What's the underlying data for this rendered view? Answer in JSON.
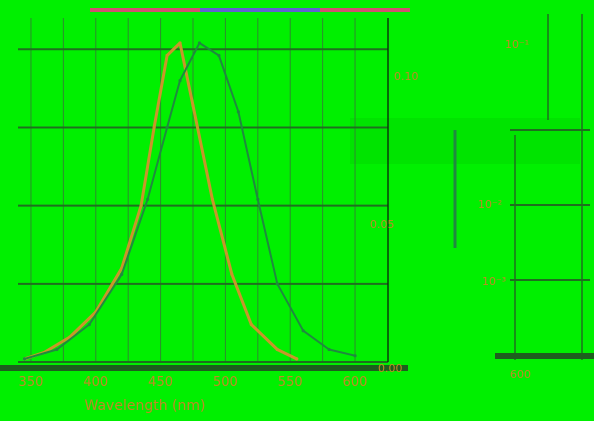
{
  "chart_data": {
    "type": "line",
    "xlabel": "Wavelength (nm)",
    "ylabel": "",
    "xlim": [
      340,
      610
    ],
    "ylim": [
      0,
      0.11
    ],
    "x_ticks": [
      "350",
      "400",
      "450",
      "500",
      "550",
      "600"
    ],
    "right_labels": [
      "0.00",
      "0.05",
      "0.10"
    ],
    "inset_labels": [
      "10⁻¹",
      "10⁻²",
      "10⁻³",
      "600"
    ],
    "grid": true,
    "series": [
      {
        "color": "#c8962a",
        "x": [
          345,
          360,
          380,
          400,
          420,
          435,
          445,
          455,
          465,
          475,
          490,
          505,
          520,
          540,
          555
        ],
        "y": [
          0.001,
          0.003,
          0.008,
          0.016,
          0.03,
          0.05,
          0.075,
          0.098,
          0.102,
          0.082,
          0.052,
          0.028,
          0.012,
          0.004,
          0.001
        ]
      },
      {
        "color": "#1f8a3f",
        "x": [
          345,
          370,
          395,
          420,
          440,
          455,
          465,
          480,
          495,
          510,
          525,
          540,
          560,
          580,
          600
        ],
        "y": [
          0.001,
          0.004,
          0.012,
          0.028,
          0.052,
          0.075,
          0.09,
          0.102,
          0.098,
          0.08,
          0.052,
          0.025,
          0.01,
          0.004,
          0.002
        ]
      }
    ],
    "colors": {
      "background": "#00f000",
      "grid": "#1f6f1f",
      "label": "#c08a24"
    }
  }
}
